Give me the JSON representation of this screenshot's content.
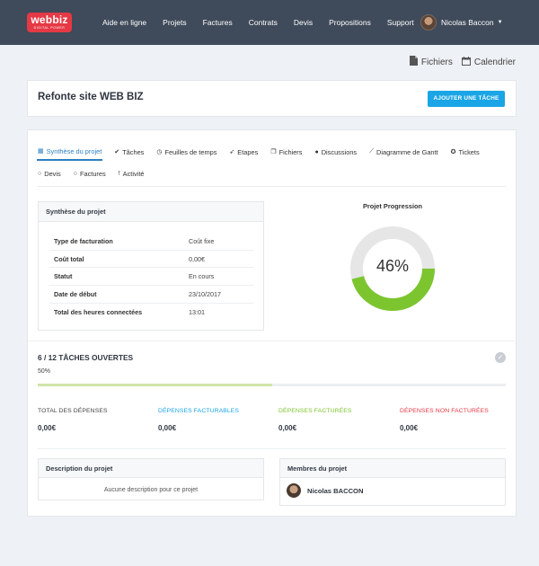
{
  "brand": {
    "logo_text": "webbiz",
    "logo_sub": "DIGITAL POWER"
  },
  "nav": {
    "items": [
      "Aide en ligne",
      "Projets",
      "Factures",
      "Contrats",
      "Devis",
      "Propositions",
      "Support"
    ],
    "user_name": "Nicolas Baccon"
  },
  "toplinks": {
    "files": "Fichiers",
    "calendar": "Calendrier"
  },
  "project": {
    "title": "Refonte site WEB BIZ",
    "add_task": "AJOUTER UNE TÂCHE"
  },
  "tabs": {
    "row1": [
      {
        "label": "Synthèse du projet",
        "icon": "grid-icon",
        "active": true
      },
      {
        "label": "Tâches",
        "icon": "check-circle-icon"
      },
      {
        "label": "Feuilles de temps",
        "icon": "clock-icon"
      },
      {
        "label": "Etapes",
        "icon": "rocket-icon"
      },
      {
        "label": "Fichiers",
        "icon": "files-icon"
      },
      {
        "label": "Discussions",
        "icon": "comment-icon"
      },
      {
        "label": "Diagramme de Gantt",
        "icon": "line-chart-icon"
      },
      {
        "label": "Tickets",
        "icon": "lifebuoy-icon"
      }
    ],
    "row2": [
      {
        "label": "Devis",
        "icon": "circle-icon"
      },
      {
        "label": "Factures",
        "icon": "circle-icon"
      },
      {
        "label": "Activité",
        "icon": "exclamation-icon"
      }
    ]
  },
  "summary": {
    "title": "Synthèse du projet",
    "rows": [
      {
        "label": "Type de facturation",
        "value": "Coût fixe"
      },
      {
        "label": "Coût total",
        "value": "0,00€"
      },
      {
        "label": "Statut",
        "value": "En cours"
      },
      {
        "label": "Date de début",
        "value": "23/10/2017"
      },
      {
        "label": "Total des heures connectées",
        "value": "13:01"
      }
    ]
  },
  "progress": {
    "title": "Projet Progression",
    "percent_text": "46%",
    "fraction": 0.46,
    "colors": {
      "fill": "#7cc52f",
      "track": "#e6e6e6"
    }
  },
  "tasks": {
    "title": "6 / 12 TÂCHES OUVERTES",
    "percent_text": "50%",
    "fraction": 0.5
  },
  "expenses": [
    {
      "label": "TOTAL DES DÉPENSES",
      "value": "0,00€",
      "color": "#444444"
    },
    {
      "label": "DÉPENSES FACTURABLES",
      "value": "0,00€",
      "color": "#1aa5e6"
    },
    {
      "label": "DÉPENSES FACTURÉES",
      "value": "0,00€",
      "color": "#7cc52f"
    },
    {
      "label": "DÉPENSES NON FACTURÉES",
      "value": "0,00€",
      "color": "#e53945"
    }
  ],
  "description": {
    "title": "Description du projet",
    "empty_text": "Aucune description pour ce projet"
  },
  "members": {
    "title": "Membres du projet",
    "list": [
      {
        "name": "Nicolas BACCON"
      }
    ]
  }
}
